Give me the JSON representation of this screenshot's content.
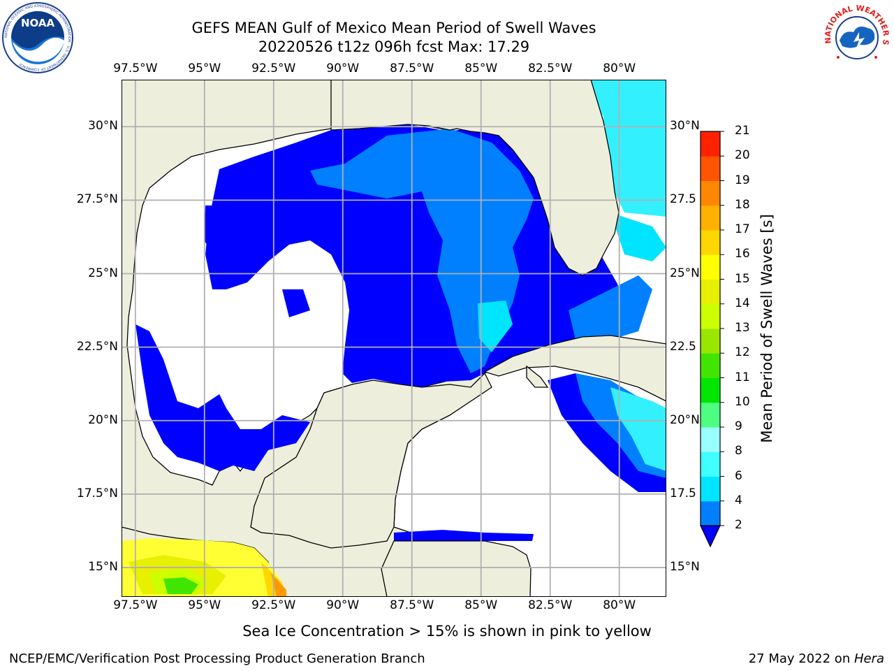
{
  "title": {
    "line1": "GEFS MEAN Gulf of Mexico Mean Period of Swell Waves",
    "line2": "20220526 t12z 096h fcst   Max: 17.29"
  },
  "map": {
    "lon_labels": [
      "97.5°W",
      "95°W",
      "92.5°W",
      "90°W",
      "87.5°W",
      "85°W",
      "82.5°W",
      "80°W"
    ],
    "lat_labels_left": [
      "30°N",
      "27.5°N",
      "25°N",
      "22.5°N",
      "20°N",
      "17.5°N",
      "15°N"
    ],
    "lat_labels_right": [
      "30°N",
      "27.5",
      "25°N",
      "22.5",
      "20°N",
      "17.5",
      "15°N"
    ],
    "extent": {
      "lon_min": -98.0,
      "lon_max": -78.3,
      "lat_min": 14.0,
      "lat_max": 31.6
    },
    "colors": {
      "land": "#eeeedd",
      "ocean_missing": "#ffffff",
      "grid": "#b0b0b0"
    }
  },
  "colorbar": {
    "label": "Mean Period of Swell Waves [s]",
    "ticks": [
      "2",
      "4",
      "6",
      "8",
      "9",
      "10",
      "11",
      "12",
      "13",
      "14",
      "15",
      "16",
      "17",
      "18",
      "19",
      "20",
      "21"
    ],
    "colors": [
      "#0000ff",
      "#0080ff",
      "#00e5ff",
      "#40ffff",
      "#99ffff",
      "#4dff80",
      "#00e600",
      "#40e600",
      "#99e600",
      "#ccff00",
      "#e6f000",
      "#ffff00",
      "#ffd700",
      "#ffb000",
      "#ff8800",
      "#ff5500",
      "#ff2200",
      "#ff0000"
    ]
  },
  "caption": "Sea Ice Concentration > 15% is shown in pink to yellow",
  "footer": {
    "left": "NCEP/EMC/Verification Post Processing Product Generation Branch",
    "right_date": "27 May 2022 on ",
    "right_host": "Hera"
  },
  "logos": {
    "noaa_text": "NOAA",
    "noaa_ring": "NATIONAL OCEANIC AND ATMOSPHERIC ADMINISTRATION · U.S. DEPARTMENT OF COMMERCE",
    "nws_ring": "NATIONAL WEATHER SERVICE"
  }
}
